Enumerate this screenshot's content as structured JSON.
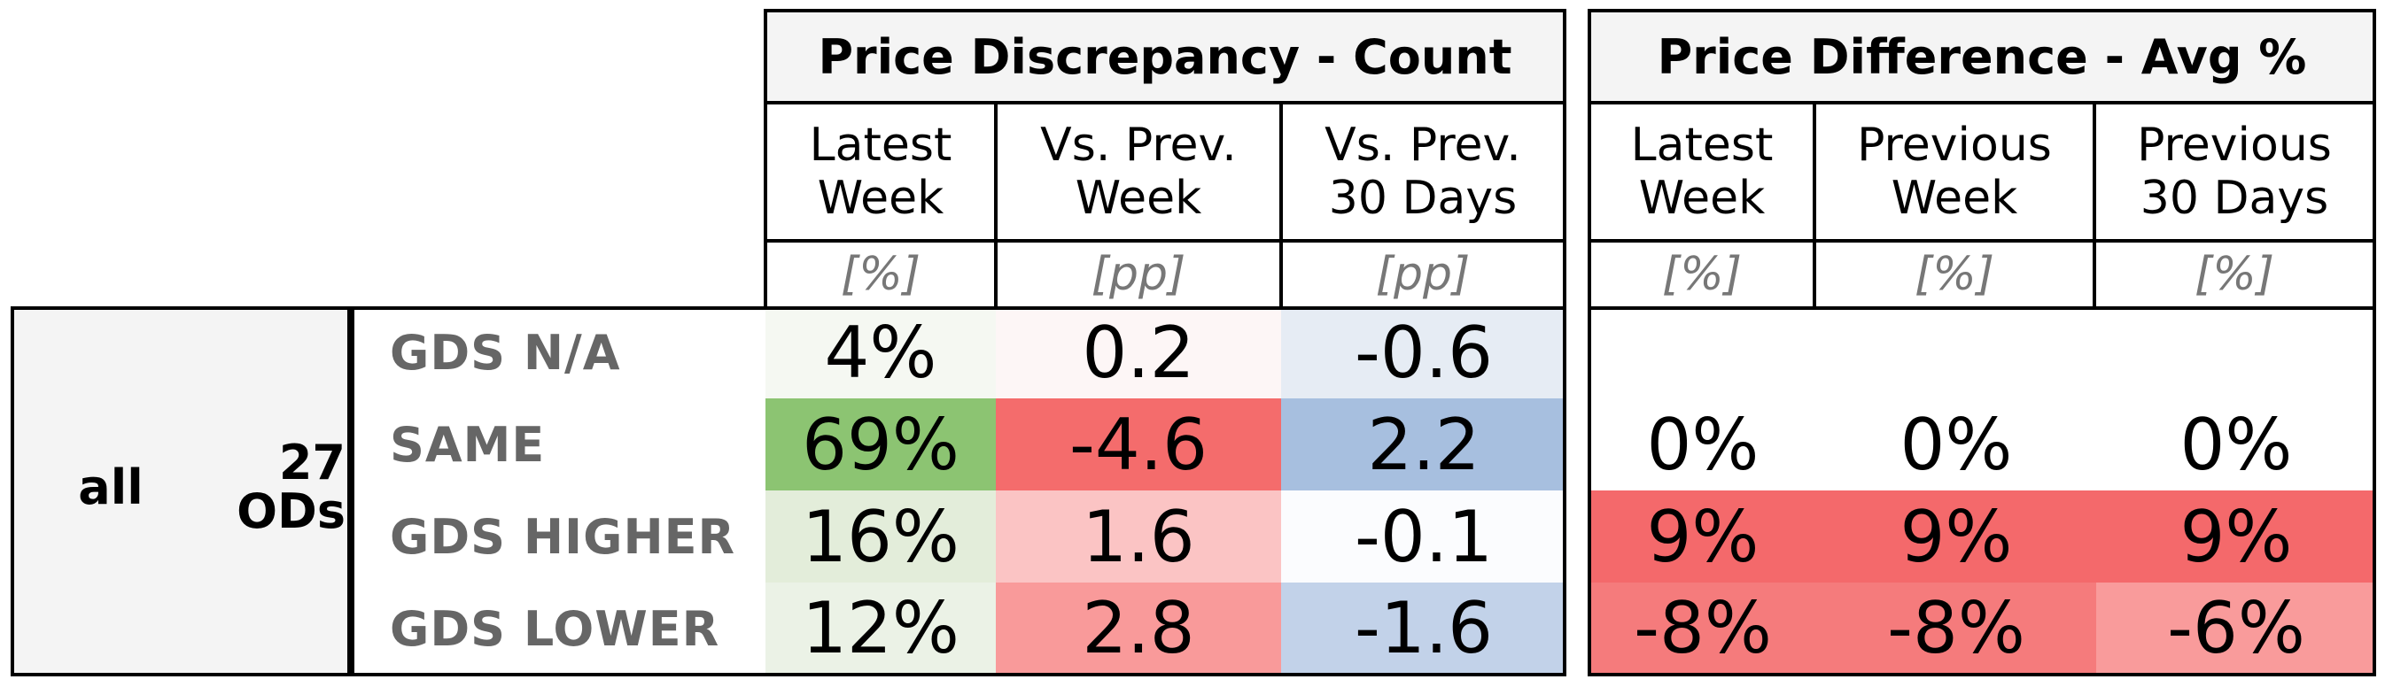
{
  "chart_data": {
    "type": "table",
    "sections": [
      {
        "title": "Price Discrepancy - Count",
        "columns": [
          {
            "label": "Latest\nWeek",
            "unit": "[%]"
          },
          {
            "label": "Vs. Prev.\nWeek",
            "unit": "[pp]"
          },
          {
            "label": "Vs. Prev.\n30 Days",
            "unit": "[pp]"
          }
        ]
      },
      {
        "title": "Price Difference - Avg %",
        "columns": [
          {
            "label": "Latest\nWeek",
            "unit": "[%]"
          },
          {
            "label": "Previous\nWeek",
            "unit": "[%]"
          },
          {
            "label": "Previous\n30 Days",
            "unit": "[%]"
          }
        ]
      }
    ],
    "group": {
      "label": "all",
      "count": "27\nODs"
    },
    "rows": [
      {
        "label": "GDS N/A",
        "count": [
          "4%",
          "0.2",
          "-0.6"
        ],
        "count_bg": [
          "#f5f8f2",
          "#fdf6f6",
          "#e6ecf4"
        ],
        "avg": [
          "",
          "",
          ""
        ],
        "avg_bg": [
          "#ffffff",
          "#ffffff",
          "#ffffff"
        ]
      },
      {
        "label": "SAME",
        "count": [
          "69%",
          "-4.6",
          "2.2"
        ],
        "count_bg": [
          "#8cc472",
          "#f46c6c",
          "#a7bfdf"
        ],
        "avg": [
          "0%",
          "0%",
          "0%"
        ],
        "avg_bg": [
          "#ffffff",
          "#ffffff",
          "#ffffff"
        ]
      },
      {
        "label": "GDS HIGHER",
        "count": [
          "16%",
          "1.6",
          "-0.1"
        ],
        "count_bg": [
          "#e3edda",
          "#fbc4c4",
          "#fbfcfe"
        ],
        "avg": [
          "9%",
          "9%",
          "9%"
        ],
        "avg_bg": [
          "#f4696b",
          "#f4696b",
          "#f4696b"
        ]
      },
      {
        "label": "GDS LOWER",
        "count": [
          "12%",
          "2.8",
          "-1.6"
        ],
        "count_bg": [
          "#ebf2e6",
          "#f99a9a",
          "#c2d2e9"
        ],
        "avg": [
          "-8%",
          "-8%",
          "-6%"
        ],
        "avg_bg": [
          "#f57b7c",
          "#f57b7c",
          "#f99b9b"
        ]
      }
    ]
  }
}
